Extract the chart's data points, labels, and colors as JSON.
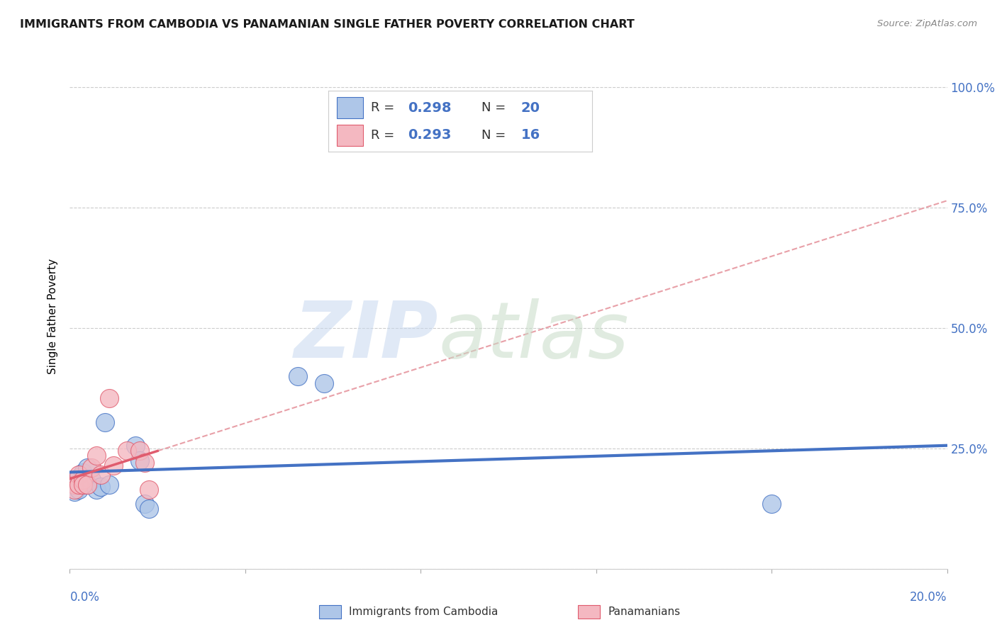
{
  "title": "IMMIGRANTS FROM CAMBODIA VS PANAMANIAN SINGLE FATHER POVERTY CORRELATION CHART",
  "source": "Source: ZipAtlas.com",
  "ylabel": "Single Father Poverty",
  "xlim": [
    0.0,
    0.2
  ],
  "ylim": [
    0.0,
    1.05
  ],
  "blue_color": "#aec6e8",
  "pink_color": "#f4b8c1",
  "blue_line_color": "#4472c4",
  "pink_line_color": "#e05c6e",
  "pink_dashed_color": "#e8a0a8",
  "legend1_r": "0.298",
  "legend1_n": "20",
  "legend2_r": "0.293",
  "legend2_n": "16",
  "cambodia_x": [
    0.001,
    0.001,
    0.001,
    0.002,
    0.002,
    0.003,
    0.003,
    0.004,
    0.005,
    0.006,
    0.007,
    0.008,
    0.009,
    0.015,
    0.016,
    0.017,
    0.018,
    0.052,
    0.058,
    0.16
  ],
  "cambodia_y": [
    0.185,
    0.175,
    0.16,
    0.19,
    0.165,
    0.2,
    0.175,
    0.21,
    0.185,
    0.165,
    0.17,
    0.305,
    0.175,
    0.255,
    0.225,
    0.135,
    0.125,
    0.4,
    0.385,
    0.135
  ],
  "panama_x": [
    0.001,
    0.001,
    0.002,
    0.002,
    0.003,
    0.003,
    0.004,
    0.005,
    0.006,
    0.007,
    0.009,
    0.01,
    0.013,
    0.016,
    0.017,
    0.018
  ],
  "panama_y": [
    0.175,
    0.165,
    0.195,
    0.175,
    0.185,
    0.175,
    0.175,
    0.21,
    0.235,
    0.195,
    0.355,
    0.215,
    0.245,
    0.245,
    0.22,
    0.165
  ],
  "ytick_positions": [
    0.0,
    0.25,
    0.5,
    0.75,
    1.0
  ],
  "ytick_labels": [
    "",
    "25.0%",
    "50.0%",
    "75.0%",
    "100.0%"
  ],
  "xtick_positions": [
    0.0,
    0.04,
    0.08,
    0.12,
    0.16,
    0.2
  ]
}
